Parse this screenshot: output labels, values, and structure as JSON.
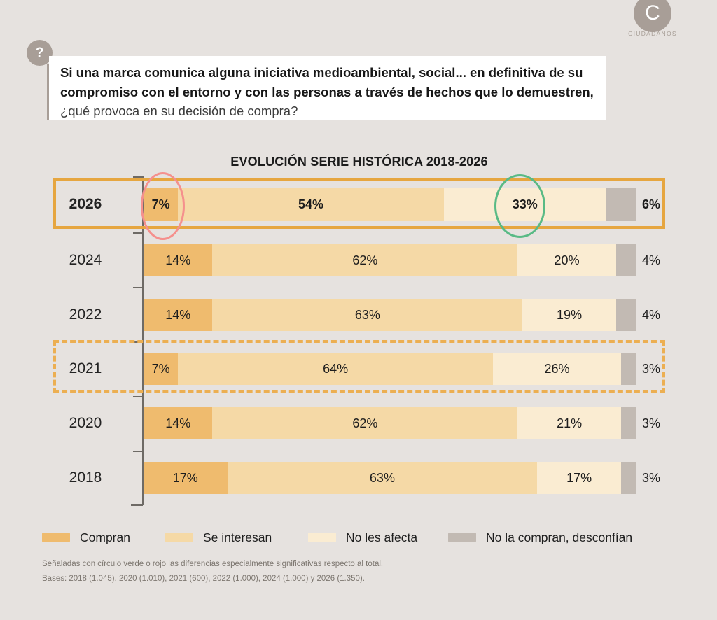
{
  "page": {
    "background_color": "#e6e2df"
  },
  "logo": {
    "letter": "C",
    "name": "CIUDADANOS",
    "circle_color": "#a89e97"
  },
  "question": {
    "icon_glyph": "?",
    "icon_circle_color": "#a89e97",
    "bold_text": "Si una marca comunica alguna iniciativa medioambiental, social... en definitiva de su compromiso con el entorno y con las personas a través de hechos que lo demuestren,",
    "normal_text": " ¿qué provoca en su decisión de compra?"
  },
  "chart_data": {
    "type": "bar",
    "stacked": true,
    "orientation": "horizontal",
    "title": "EVOLUCIÓN SERIE HISTÓRICA 2018-2026",
    "xlim": [
      0,
      100
    ],
    "grid": false,
    "legend_position": "bottom",
    "categories": [
      "2026",
      "2024",
      "2022",
      "2021",
      "2020",
      "2018"
    ],
    "series": [
      {
        "name": "Compran",
        "values": [
          7,
          14,
          14,
          7,
          14,
          17
        ]
      },
      {
        "name": "Se interesan",
        "values": [
          54,
          62,
          63,
          64,
          62,
          63
        ]
      },
      {
        "name": "No les afecta",
        "values": [
          33,
          20,
          19,
          26,
          21,
          17
        ]
      },
      {
        "name": "No la compran, desconfían",
        "values": [
          6,
          4,
          4,
          3,
          3,
          3
        ]
      }
    ],
    "rows": [
      {
        "year": "2026",
        "bold": true,
        "values": [
          7,
          54,
          33,
          6
        ],
        "labels": [
          "7%",
          "54%",
          "33%",
          "6%"
        ],
        "highlight": "solid-box"
      },
      {
        "year": "2024",
        "bold": false,
        "values": [
          14,
          62,
          20,
          4
        ],
        "labels": [
          "14%",
          "62%",
          "20%",
          "4%"
        ],
        "highlight": null
      },
      {
        "year": "2022",
        "bold": false,
        "values": [
          14,
          63,
          19,
          4
        ],
        "labels": [
          "14%",
          "63%",
          "19%",
          "4%"
        ],
        "highlight": null
      },
      {
        "year": "2021",
        "bold": false,
        "values": [
          7,
          64,
          26,
          3
        ],
        "labels": [
          "7%",
          "64%",
          "26%",
          "3%"
        ],
        "highlight": "dashed-box"
      },
      {
        "year": "2020",
        "bold": false,
        "values": [
          14,
          62,
          21,
          3
        ],
        "labels": [
          "14%",
          "62%",
          "21%",
          "3%"
        ],
        "highlight": null
      },
      {
        "year": "2018",
        "bold": false,
        "values": [
          17,
          63,
          17,
          3
        ],
        "labels": [
          "17%",
          "63%",
          "17%",
          "3%"
        ],
        "highlight": null
      }
    ],
    "colors": [
      "#efbb6e",
      "#f5d9a6",
      "#faecd2",
      "#c2bab3"
    ],
    "highlights": {
      "solid_box_row": "2026",
      "solid_box_color": "#e6a640",
      "dashed_box_row": "2021",
      "dashed_box_color": "#ecaf52"
    },
    "annotations": {
      "red_circle": {
        "row": "2026",
        "segment": "Compran",
        "value_label": "7%",
        "color": "#f5908d"
      },
      "green_circle": {
        "row": "2026",
        "segment": "No les afecta",
        "value_label": "33%",
        "color": "#59ba85"
      }
    }
  },
  "legend": {
    "items": [
      {
        "label": "Compran",
        "color": "#efbb6e"
      },
      {
        "label": "Se interesan",
        "color": "#f5d9a6"
      },
      {
        "label": "No les afecta",
        "color": "#faecd2"
      },
      {
        "label": "No la compran, desconfían",
        "color": "#c2bab3"
      }
    ]
  },
  "footnotes": {
    "line1": "Señaladas con círculo verde o rojo las diferencias especialmente significativas respecto al total.",
    "line2": "Bases: 2018 (1.045), 2020 (1.010), 2021 (600), 2022 (1.000), 2024 (1.000) y 2026 (1.350)."
  }
}
